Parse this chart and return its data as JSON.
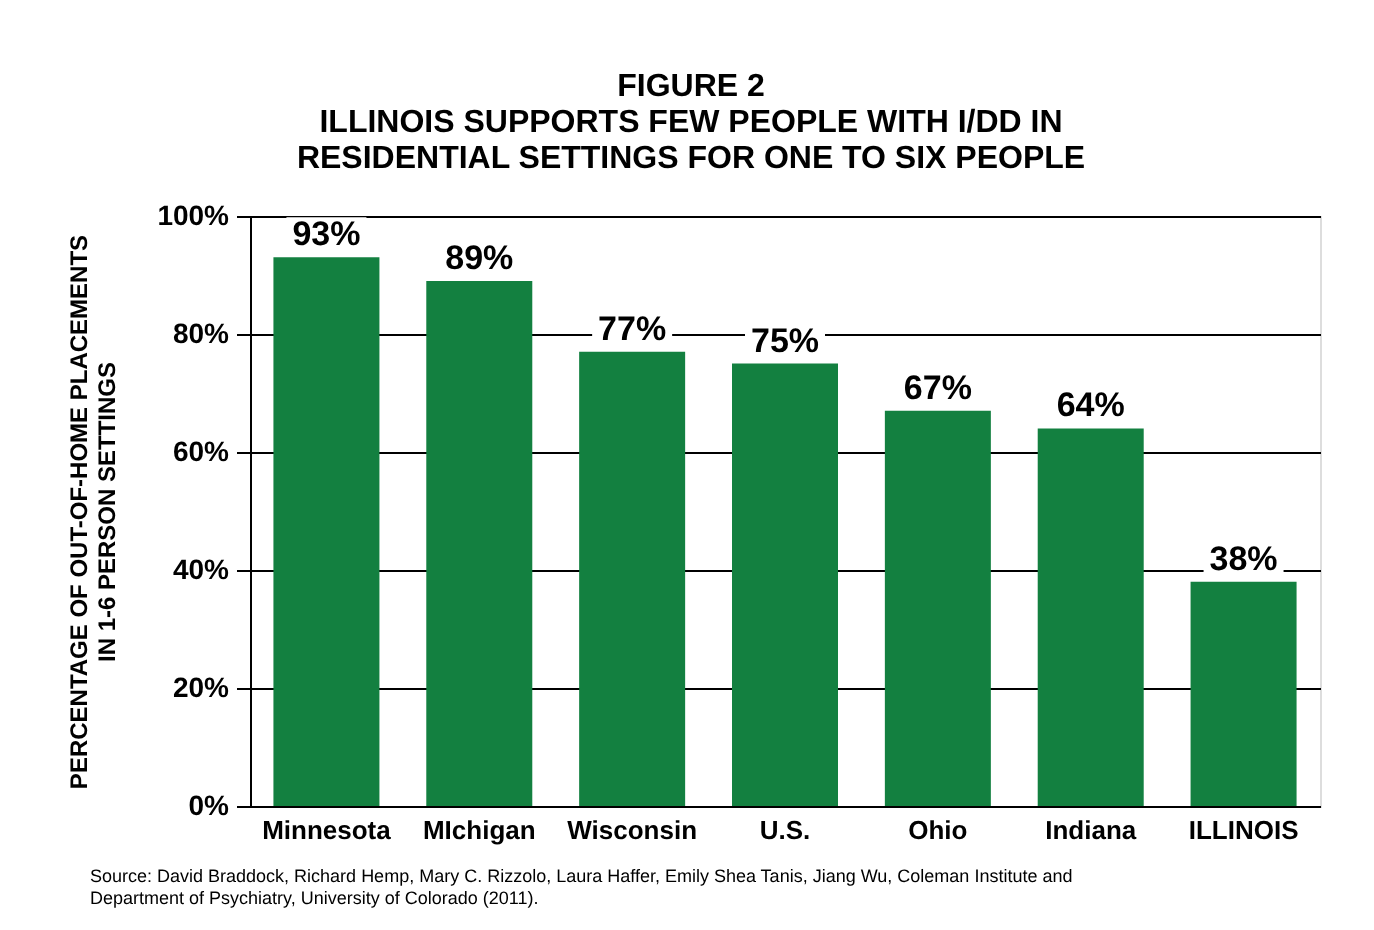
{
  "chart_data": {
    "type": "bar",
    "title": "FIGURE 2\nILLINOIS SUPPORTS FEW PEOPLE WITH I/DD IN\nRESIDENTIAL SETTINGS FOR ONE TO SIX PEOPLE",
    "ylabel": "PERCENTAGE OF OUT-OF-HOME PLACEMENTS\nIN 1-6 PERSON SETTINGS",
    "categories": [
      "Minnesota",
      "MIchigan",
      "Wisconsin",
      "U.S.",
      "Ohio",
      "Indiana",
      "ILLINOIS"
    ],
    "values": [
      93,
      89,
      77,
      75,
      67,
      64,
      38
    ],
    "value_labels": [
      "93%",
      "89%",
      "77%",
      "75%",
      "67%",
      "64%",
      "38%"
    ],
    "color": "#138040",
    "ylim": [
      0,
      100
    ],
    "yticks": [
      {
        "value": 0,
        "label": "0%"
      },
      {
        "value": 20,
        "label": "20%"
      },
      {
        "value": 40,
        "label": "40%"
      },
      {
        "value": 60,
        "label": "60%"
      },
      {
        "value": 80,
        "label": "80%"
      },
      {
        "value": 100,
        "label": "100%"
      }
    ],
    "grid": "y",
    "annotations": [
      "Source: David Braddock, Richard Hemp, Mary C. Rizzolo, Laura Haffer,  Emily Shea Tanis, Jiang Wu, Coleman Institute and\nDepartment of Psychiatry, University of Colorado (2011)."
    ]
  }
}
